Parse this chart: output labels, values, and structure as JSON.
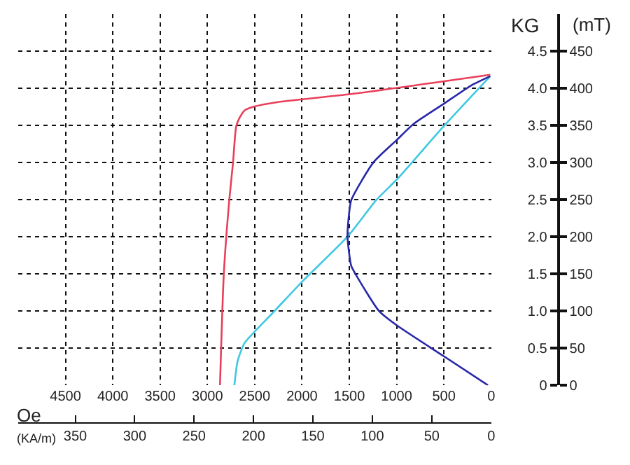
{
  "chart_data": {
    "type": "line",
    "xlabel": "Oe",
    "x2label": "(KA/m)",
    "ylabel": "KG",
    "y2label": "(mT)",
    "xlim": [
      5000,
      0
    ],
    "xticks": [
      4500,
      4000,
      3500,
      3000,
      2500,
      2000,
      1500,
      1000,
      500,
      0
    ],
    "x2lim": [
      398,
      0
    ],
    "x2ticks": [
      350,
      300,
      250,
      200,
      150,
      100,
      50,
      0
    ],
    "ylim": [
      0,
      5
    ],
    "yticks": [
      0,
      0.5,
      {
        "value": 1,
        "label": "1.0"
      },
      1.5,
      {
        "value": 2,
        "label": "2.0"
      },
      2.5,
      {
        "value": 3,
        "label": "3.0"
      },
      3.5,
      {
        "value": 4,
        "label": "4.0"
      },
      4.5
    ],
    "y2lim": [
      0,
      500
    ],
    "y2ticks": [
      0,
      50,
      100,
      150,
      200,
      250,
      300,
      350,
      400,
      450
    ],
    "grid": true,
    "marker": "none",
    "line_style": "solid",
    "series": [
      {
        "color": "#e8405a",
        "x": [
          2867,
          2827,
          2769,
          2729,
          2695,
          2656,
          2607,
          2509,
          2264,
          1480,
          10
        ],
        "values": [
          0,
          1.49,
          2.49,
          3.0,
          3.49,
          3.61,
          3.7,
          3.75,
          3.81,
          3.92,
          4.18
        ]
      },
      {
        "color": "#40c8e0",
        "x": [
          2715,
          2680,
          2607,
          2509,
          2313,
          1994,
          1519,
          1210,
          990,
          500,
          10
        ],
        "values": [
          0,
          0.33,
          0.57,
          0.71,
          0.97,
          1.4,
          2.0,
          2.5,
          2.78,
          3.49,
          4.16
        ]
      },
      {
        "color": "#2828a8",
        "x": [
          34,
          500,
          990,
          1186,
          1431,
          1480,
          1519,
          1504,
          1480,
          1245,
          1000,
          818,
          500,
          206,
          10
        ],
        "values": [
          0,
          0.39,
          0.8,
          1.0,
          1.49,
          1.61,
          2.0,
          2.29,
          2.49,
          3.0,
          3.3,
          3.52,
          3.79,
          4.04,
          4.16
        ]
      }
    ]
  }
}
